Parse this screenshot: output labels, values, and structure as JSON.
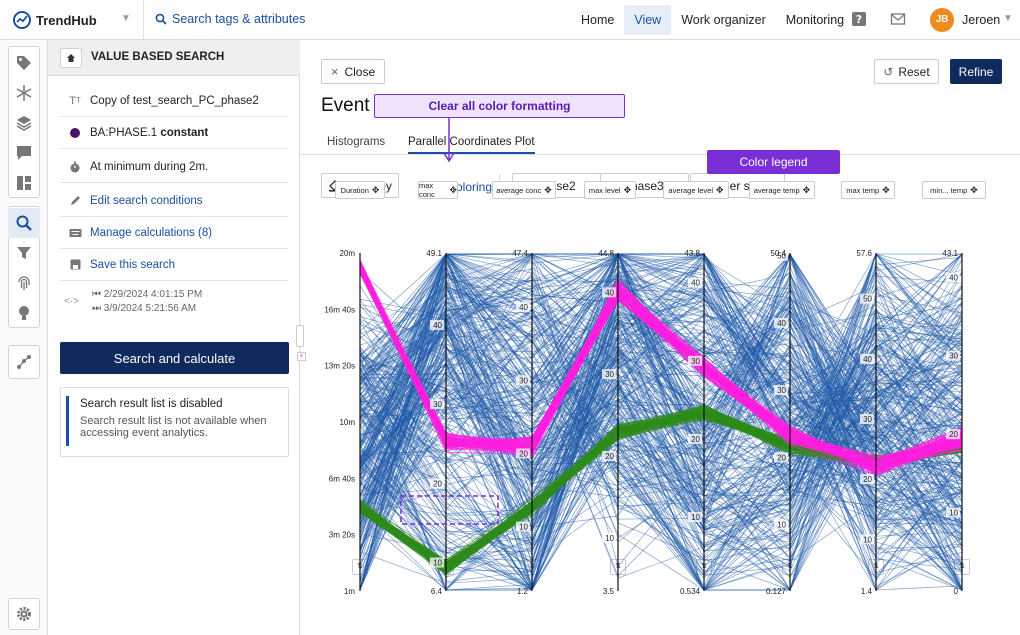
{
  "brand": {
    "name": "TrendHub"
  },
  "topbar": {
    "search_label": "Search tags & attributes",
    "nav": [
      "Home",
      "View",
      "Work organizer",
      "Monitoring"
    ],
    "active_nav": "View",
    "user_initials": "JB",
    "user_name": "Jeroen"
  },
  "panel": {
    "title": "VALUE BASED SEARCH",
    "search_name": "Copy of test_search_PC_phase2",
    "condition_tag": "BA:PHASE.1",
    "condition_value": "constant",
    "duration": "At minimum during 2m.",
    "edit_conditions": "Edit search conditions",
    "manage_calculations": "Manage calculations (8)",
    "save_search": "Save this search",
    "date_start": "2/29/2024 4:01:15 PM",
    "date_end": "3/9/2024 5:21:56 AM",
    "search_button": "Search and calculate",
    "info_title": "Search result list is disabled",
    "info_text": "Search result list is not available when accessing event analytics."
  },
  "main": {
    "close": "Close",
    "reset": "Reset",
    "refine": "Refine",
    "title": "Event",
    "tabs": [
      "Histograms",
      "Parallel Coordinates Plot"
    ],
    "active_tab": "Parallel Coordinates Plot",
    "color_by": "Color by",
    "clear_coloring": "Clear coloring",
    "legend": [
      {
        "label": "Phase2",
        "color": "#2e8b1c",
        "removable": true
      },
      {
        "label": "Phase3",
        "color": "#ff1fe0",
        "removable": true
      },
      {
        "label": "other states",
        "color": "#1f5aa8",
        "removable": false
      }
    ],
    "callouts": {
      "clear_all": "Clear all color formatting",
      "color_legend": "Color legend"
    }
  },
  "colors": {
    "primary": "#0f2a5c",
    "link": "#1b4fa0",
    "accent": "#7a2fd6",
    "other_states": "#1f5aa8",
    "phase2": "#2e8b1c",
    "phase3": "#ff1fe0"
  },
  "chart_data": {
    "type": "parallel-coordinates",
    "axes": [
      {
        "name": "Duration",
        "min_label": "1m",
        "max_label": "20m",
        "ticks": [
          "20m",
          "16m 40s",
          "13m 20s",
          "10m",
          "6m 40s",
          "3m 20s",
          "1m"
        ]
      },
      {
        "name": "max conc",
        "min_label": "6.4",
        "max_label": "49.1",
        "ticks": [
          "40",
          "30",
          "20",
          "10"
        ]
      },
      {
        "name": "average conc",
        "min_label": "1.2",
        "max_label": "47.4",
        "ticks": [
          "40",
          "30",
          "20",
          "10"
        ]
      },
      {
        "name": "max level",
        "min_label": "3.5",
        "max_label": "44.8",
        "ticks": [
          "40",
          "30",
          "20",
          "10"
        ]
      },
      {
        "name": "average level",
        "min_label": "0.534",
        "max_label": "43.8",
        "ticks": [
          "40",
          "30",
          "20",
          "10"
        ]
      },
      {
        "name": "average temp",
        "min_label": "0.127",
        "max_label": "50.4",
        "ticks": [
          "50",
          "40",
          "30",
          "20",
          "10"
        ]
      },
      {
        "name": "max temp",
        "min_label": "1.4",
        "max_label": "57.6",
        "ticks": [
          "50",
          "40",
          "30",
          "20",
          "10"
        ]
      },
      {
        "name": "min... temp",
        "min_label": "0",
        "max_label": "43.1",
        "ticks": [
          "40",
          "30",
          "20",
          "10"
        ]
      }
    ],
    "series": [
      {
        "name": "Phase2",
        "color": "#2e8b1c",
        "profile": [
          0.25,
          0.07,
          0.25,
          0.47,
          0.53,
          0.43,
          0.38,
          0.43
        ]
      },
      {
        "name": "Phase3",
        "color": "#ff1fe0",
        "profile": [
          0.96,
          0.44,
          0.43,
          0.89,
          0.66,
          0.46,
          0.37,
          0.45
        ]
      },
      {
        "name": "other states",
        "color": "#1f5aa8"
      }
    ]
  }
}
